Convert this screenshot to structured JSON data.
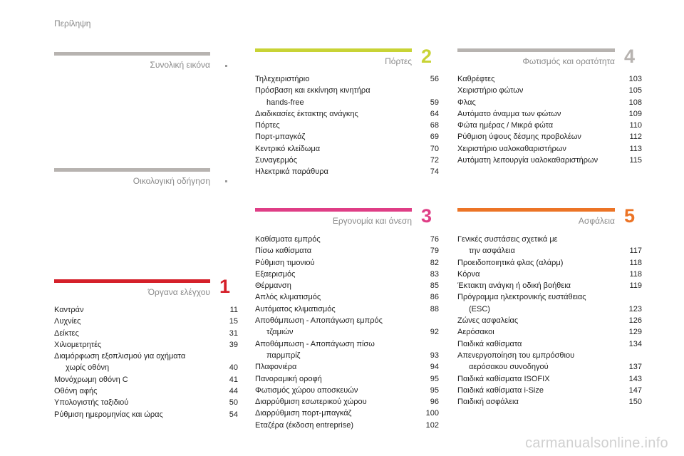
{
  "header": {
    "title": "Περίληψη"
  },
  "colors": {
    "grey": "#b7b3b0",
    "red": "#d5202a",
    "lime": "#c8d335",
    "pink": "#df3e86",
    "orange": "#ec7426"
  },
  "sections": {
    "overview": {
      "title": "Συνολική εικόνα"
    },
    "eco": {
      "title": "Οικολογική οδήγηση"
    },
    "controls": {
      "title": "Όργανα ελέγχου",
      "number": "1",
      "entries": [
        {
          "l1": "Καντράν",
          "l2": "",
          "page": "11"
        },
        {
          "l1": "Λυχνίες",
          "l2": "",
          "page": "15"
        },
        {
          "l1": "Δείκτες",
          "l2": "",
          "page": "31"
        },
        {
          "l1": "Χιλιομετρητές",
          "l2": "",
          "page": "39"
        },
        {
          "l1": "Διαμόρφωση εξοπλισμού για οχήματα",
          "l2": "χωρίς οθόνη",
          "page": "40"
        },
        {
          "l1": "Μονόχρωμη οθόνη C",
          "l2": "",
          "page": "41"
        },
        {
          "l1": "Οθόνη αφής",
          "l2": "",
          "page": "44"
        },
        {
          "l1": "Υπολογιστής ταξιδιού",
          "l2": "",
          "page": "50"
        },
        {
          "l1": "Ρύθμιση ημερομηνίας και ώρας",
          "l2": "",
          "page": "54"
        }
      ]
    },
    "doors": {
      "title": "Πόρτες",
      "number": "2",
      "entries": [
        {
          "l1": "Τηλεχειριστήριο",
          "l2": "",
          "page": "56"
        },
        {
          "l1": "Πρόσβαση και εκκίνηση κινητήρα",
          "l2": "hands-free",
          "page": "59"
        },
        {
          "l1": "Διαδικασίες έκτακτης ανάγκης",
          "l2": "",
          "page": "64"
        },
        {
          "l1": "Πόρτες",
          "l2": "",
          "page": "68"
        },
        {
          "l1": "Πορτ-μπαγκάζ",
          "l2": "",
          "page": "69"
        },
        {
          "l1": "Κεντρικό κλείδωμα",
          "l2": "",
          "page": "70"
        },
        {
          "l1": "Συναγερμός",
          "l2": "",
          "page": "72"
        },
        {
          "l1": "Ηλεκτρικά παράθυρα",
          "l2": "",
          "page": "74"
        }
      ]
    },
    "ergonomics": {
      "title": "Εργονομία και άνεση",
      "number": "3",
      "entries": [
        {
          "l1": "Καθίσματα εμπρός",
          "l2": "",
          "page": "76"
        },
        {
          "l1": "Πίσω καθίσματα",
          "l2": "",
          "page": "79"
        },
        {
          "l1": "Ρύθμιση τιμονιού",
          "l2": "",
          "page": "82"
        },
        {
          "l1": "Εξαερισμός",
          "l2": "",
          "page": "83"
        },
        {
          "l1": "Θέρμανση",
          "l2": "",
          "page": "85"
        },
        {
          "l1": "Απλός κλιματισμός",
          "l2": "",
          "page": "86"
        },
        {
          "l1": "Αυτόματος κλιματισμός",
          "l2": "",
          "page": "88"
        },
        {
          "l1": "Αποθάμπωση - Αποπάγωση εμπρός",
          "l2": "τζαμιών",
          "page": "92"
        },
        {
          "l1": "Αποθάμπωση - Αποπάγωση πίσω",
          "l2": "παρμπρίζ",
          "page": "93"
        },
        {
          "l1": "Πλαφονιέρα",
          "l2": "",
          "page": "94"
        },
        {
          "l1": "Πανοραμική οροφή",
          "l2": "",
          "page": "95"
        },
        {
          "l1": "Φωτισμός χώρου αποσκευών",
          "l2": "",
          "page": "95"
        },
        {
          "l1": "Διαρρύθμιση εσωτερικού χώρου",
          "l2": "",
          "page": "96"
        },
        {
          "l1": "Διαρρύθμιση πορτ-μπαγκάζ",
          "l2": "",
          "page": "100"
        },
        {
          "l1": "Εταζέρα (έκδοση entreprise)",
          "l2": "",
          "page": "102"
        }
      ]
    },
    "lighting": {
      "title": "Φωτισμός και ορατότητα",
      "number": "4",
      "entries": [
        {
          "l1": "Καθρέφτες",
          "l2": "",
          "page": "103"
        },
        {
          "l1": "Χειριστήριο φώτων",
          "l2": "",
          "page": "105"
        },
        {
          "l1": "Φλας",
          "l2": "",
          "page": "108"
        },
        {
          "l1": "Αυτόματο άναμμα των φώτων",
          "l2": "",
          "page": "109"
        },
        {
          "l1": "Φώτα ημέρας / Μικρά φώτα",
          "l2": "",
          "page": "110"
        },
        {
          "l1": "Ρύθμιση ύψους δέσμης προβολέων",
          "l2": "",
          "page": "112"
        },
        {
          "l1": "Χειριστήριο υαλοκαθαριστήρων",
          "l2": "",
          "page": "113"
        },
        {
          "l1": "Αυτόματη λειτουργία υαλοκαθαριστήρων",
          "l2": "",
          "page": "115"
        }
      ]
    },
    "safety": {
      "title": "Ασφάλεια",
      "number": "5",
      "entries": [
        {
          "l1": "Γενικές συστάσεις σχετικά με",
          "l2": "την ασφάλεια",
          "page": "117"
        },
        {
          "l1": "Προειδοποιητικά φλας (αλάρμ)",
          "l2": "",
          "page": "118"
        },
        {
          "l1": "Κόρνα",
          "l2": "",
          "page": "118"
        },
        {
          "l1": "Έκτακτη ανάγκη ή οδική βοήθεια",
          "l2": "",
          "page": "119"
        },
        {
          "l1": "Πρόγραμμα ηλεκτρονικής ευστάθειας",
          "l2": "(ESC)",
          "page": "123"
        },
        {
          "l1": "Ζώνες ασφαλείας",
          "l2": "",
          "page": "126"
        },
        {
          "l1": "Αερόσακοι",
          "l2": "",
          "page": "129"
        },
        {
          "l1": "Παιδικά καθίσματα",
          "l2": "",
          "page": "134"
        },
        {
          "l1": "Απενεργοποίηση του εμπρόσθιου",
          "l2": "αερόσακου συνοδηγού",
          "page": "137"
        },
        {
          "l1": "Παιδικά καθίσματα ISOFIX",
          "l2": "",
          "page": "143"
        },
        {
          "l1": "Παιδικά καθίσματα i-Size",
          "l2": "",
          "page": "147"
        },
        {
          "l1": "Παιδική ασφάλεια",
          "l2": "",
          "page": "150"
        }
      ]
    }
  },
  "watermark": "carmanualsonline.info"
}
